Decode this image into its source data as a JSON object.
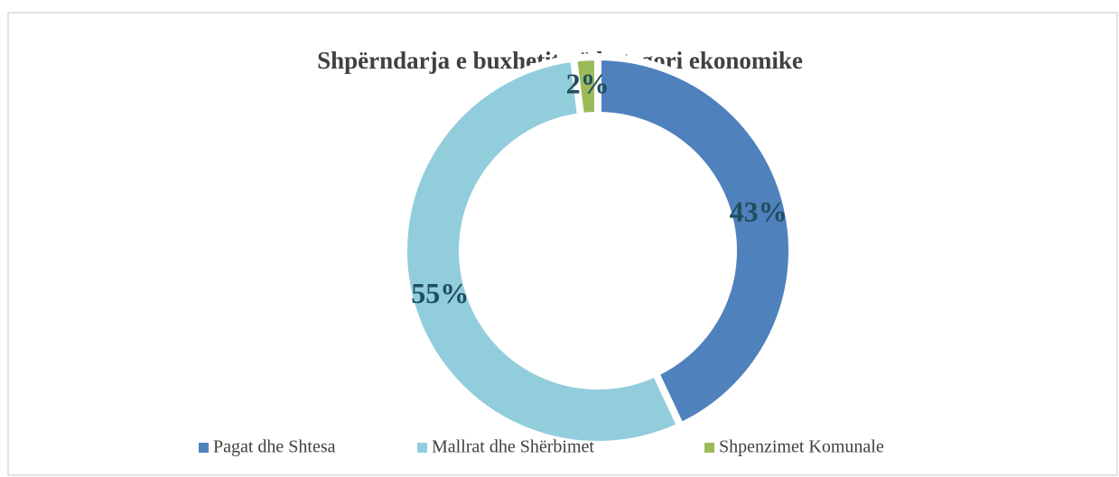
{
  "chart_data": {
    "type": "donut",
    "title": "Shpërndarja e buxhetit në kategori ekonomike",
    "categories": [
      "Pagat dhe Shtesa",
      "Mallrat dhe Shërbimet",
      "Shpenzimet Komunale"
    ],
    "values": [
      43,
      55,
      2
    ],
    "value_labels": [
      "43%",
      "55%",
      "2%"
    ],
    "colors": [
      "#4f81bd",
      "#92cddc",
      "#9bbb59"
    ],
    "legend": "bottom"
  }
}
